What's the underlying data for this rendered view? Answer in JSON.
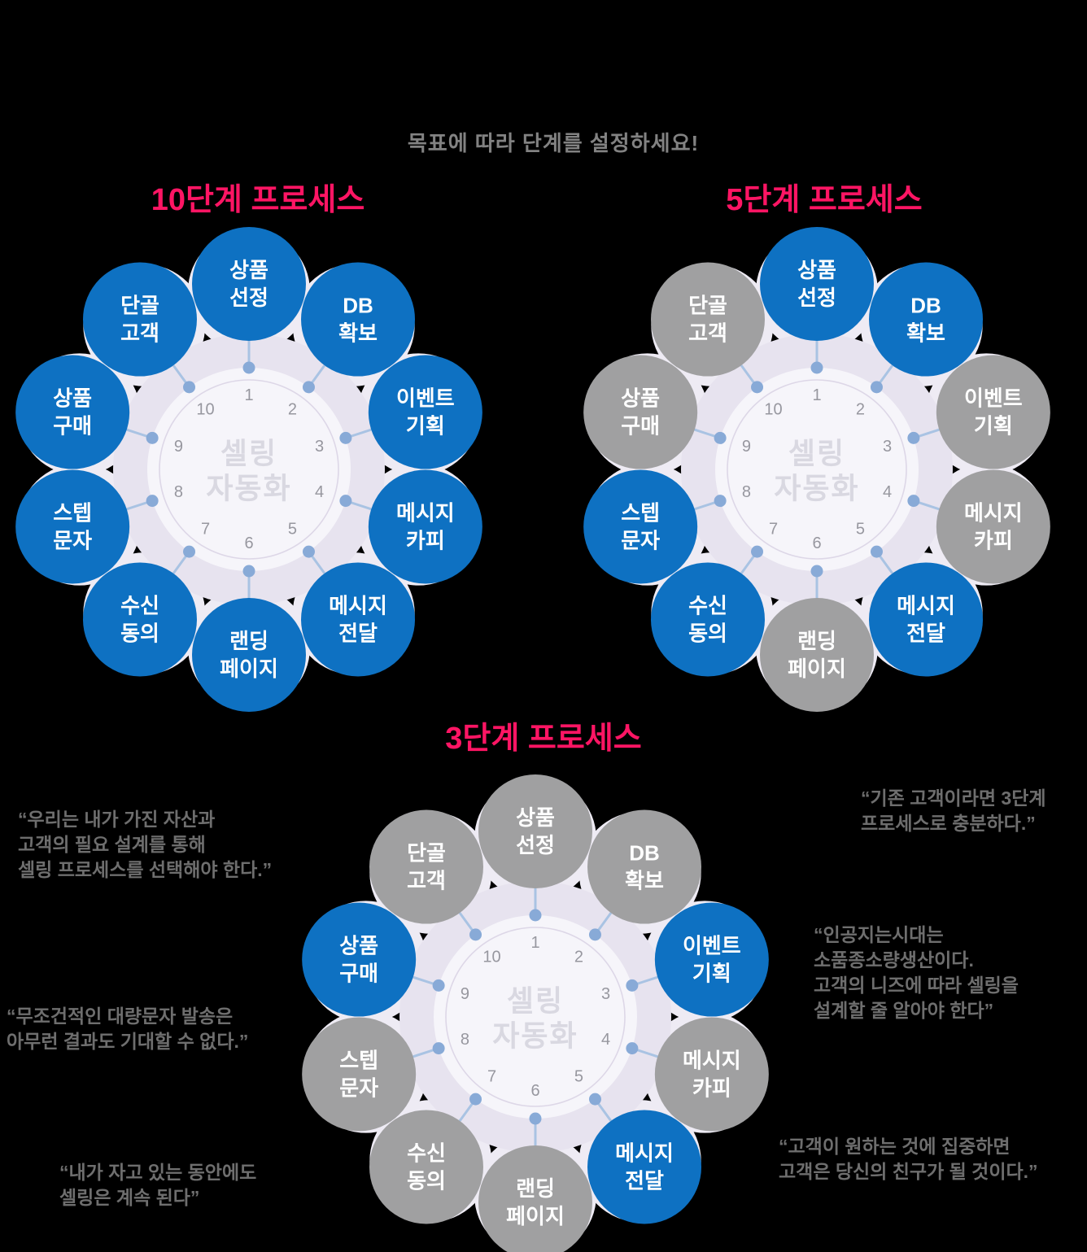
{
  "subtitle": "목표에 따라 단계를 설정하세요!",
  "center_label": {
    "line1": "셀링",
    "line2": "자동화"
  },
  "steps": [
    {
      "num": 1,
      "line1": "상품",
      "line2": "선정"
    },
    {
      "num": 2,
      "line1": "DB",
      "line2": "확보"
    },
    {
      "num": 3,
      "line1": "이벤트",
      "line2": "기획"
    },
    {
      "num": 4,
      "line1": "메시지",
      "line2": "카피"
    },
    {
      "num": 5,
      "line1": "메시지",
      "line2": "전달"
    },
    {
      "num": 6,
      "line1": "랜딩",
      "line2": "페이지"
    },
    {
      "num": 7,
      "line1": "수신",
      "line2": "동의"
    },
    {
      "num": 8,
      "line1": "스텝",
      "line2": "문자"
    },
    {
      "num": 9,
      "line1": "상품",
      "line2": "구매"
    },
    {
      "num": 10,
      "line1": "단골",
      "line2": "고객"
    }
  ],
  "diagrams": [
    {
      "title": "10단계 프로세스",
      "active_steps": [
        1,
        2,
        3,
        4,
        5,
        6,
        7,
        8,
        9,
        10
      ]
    },
    {
      "title": "5단계 프로세스",
      "active_steps": [
        1,
        2,
        5,
        7,
        8
      ]
    },
    {
      "title": "3단계 프로세스",
      "active_steps": [
        3,
        5,
        9
      ]
    }
  ],
  "quotes": [
    {
      "text": "“우리는 내가 가진 자산과\n고객의 필요 설계를 통해\n셀링 프로세스를 선택해야 한다.”"
    },
    {
      "text": "“무조건적인 대량문자 발송은\n아무런 결과도 기대할 수 없다.”"
    },
    {
      "text": "“내가 자고 있는 동안에도\n셀링은 계속 된다”"
    },
    {
      "text": "“기존 고객이라면 3단계\n프로세스로 충분하다.”"
    },
    {
      "text": "“인공지는시대는\n소품종소량생산이다.\n고객의 니즈에 따라 셀링을\n설계할 줄 알아야 한다”"
    },
    {
      "text": "“고객이 원하는 것에 집중하면\n고객은 당신의 친구가 될 것이다.”"
    }
  ],
  "colors": {
    "title_pink": "#ff1564",
    "subtitle_gray": "#828282",
    "quote_gray": "#6e6e6e",
    "active_blue": "#0e71c2",
    "inactive_gray": "#a0a0a1",
    "node_text_white": "#ffffff",
    "petal_lavender": "#eeebf4",
    "ring_lavender": "#e7e3ef",
    "disc_white": "#f6f5fa",
    "number_ring": "#ddd7e7",
    "connector_line": "#a9c3e3",
    "connector_dot": "#88aad7",
    "number_gray": "#97979f",
    "center_text_gray": "#d9d8e1",
    "background": "#000000"
  }
}
